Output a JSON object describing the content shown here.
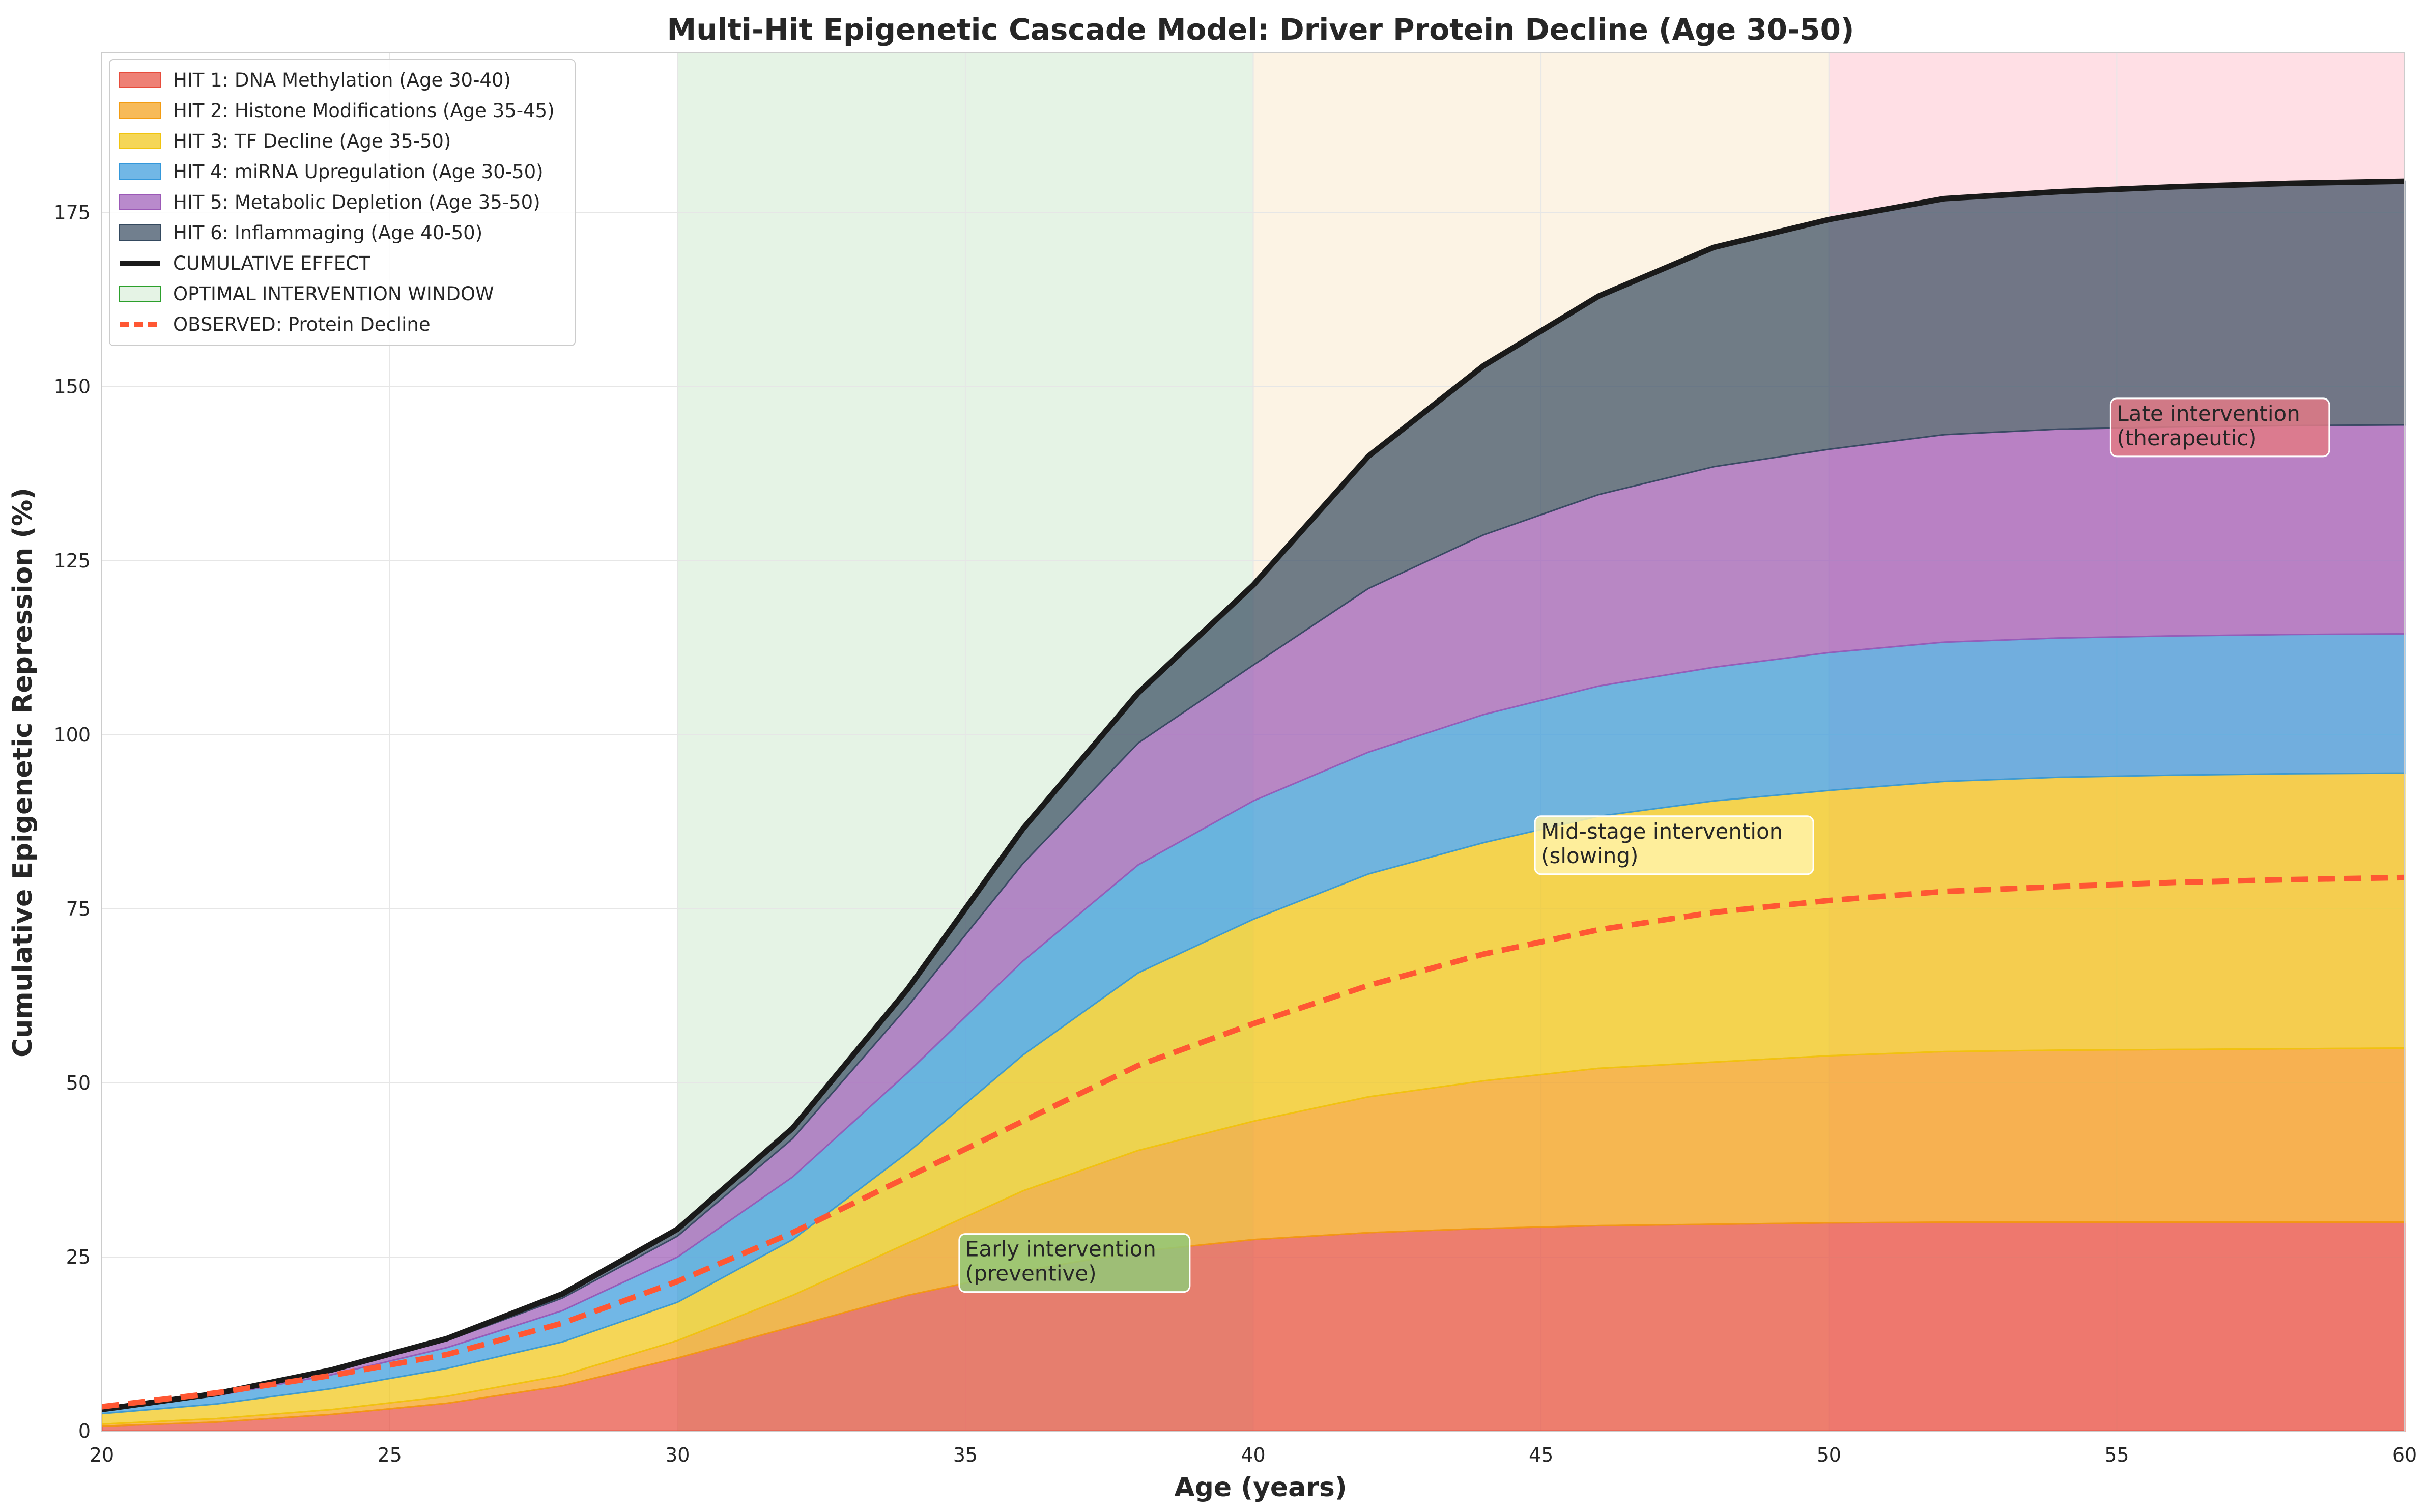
{
  "chart_data": {
    "type": "area",
    "title": "Multi-Hit Epigenetic Cascade Model: Driver Protein Decline (Age 30-50)",
    "xlabel": "Age (years)",
    "ylabel": "Cumulative Epigenetic Repression (%)",
    "xlim": [
      20,
      60
    ],
    "ylim": [
      0,
      198
    ],
    "xticks": [
      "20",
      "25",
      "30",
      "35",
      "40",
      "45",
      "50",
      "55",
      "60"
    ],
    "yticks": [
      "0",
      "25",
      "50",
      "75",
      "100",
      "125",
      "150",
      "175"
    ],
    "grid": true,
    "legend_position": "top-left",
    "x": [
      20,
      22,
      24,
      26,
      28,
      30,
      32,
      34,
      36,
      38,
      40,
      42,
      44,
      46,
      48,
      50,
      52,
      54,
      56,
      58,
      60
    ],
    "series": [
      {
        "name": "HIT 1: DNA Methylation (Age 30-40)",
        "color": "#e74c3c",
        "values": [
          0.7,
          1.3,
          2.4,
          4.0,
          6.5,
          10.5,
          15.0,
          19.5,
          23.0,
          25.8,
          27.5,
          28.5,
          29.1,
          29.5,
          29.7,
          29.9,
          30.0,
          30.0,
          30.0,
          30.0,
          30.0
        ]
      },
      {
        "name": "HIT 2: Histone Modifications (Age 35-45)",
        "color": "#f39c12",
        "values": [
          0.3,
          0.5,
          0.7,
          1.0,
          1.5,
          2.5,
          4.5,
          7.5,
          11.5,
          14.5,
          17.0,
          19.5,
          21.2,
          22.6,
          23.3,
          24.0,
          24.5,
          24.7,
          24.8,
          24.9,
          25.0
        ]
      },
      {
        "name": "HIT 3: TF Decline (Age 35-50)",
        "color": "#f1c40f",
        "values": [
          1.5,
          2.1,
          3.0,
          4.0,
          4.8,
          5.5,
          8.0,
          13.0,
          19.5,
          25.5,
          29.0,
          32.0,
          34.2,
          36.2,
          37.5,
          38.1,
          38.8,
          39.2,
          39.4,
          39.5,
          39.5
        ]
      },
      {
        "name": "HIT 4: miRNA Upregulation (Age 30-50)",
        "color": "#3498db",
        "values": [
          0.5,
          1.2,
          2.0,
          3.0,
          4.5,
          6.5,
          9.0,
          11.5,
          13.5,
          15.5,
          17.0,
          17.5,
          18.4,
          18.7,
          19.2,
          19.8,
          20.0,
          20.0,
          20.0,
          20.0,
          20.0
        ]
      },
      {
        "name": "HIT 5: Metabolic Depletion (Age 35-50)",
        "color": "#9b59b6",
        "values": [
          0.1,
          0.3,
          0.6,
          1.0,
          1.8,
          3.0,
          5.5,
          9.5,
          14.0,
          17.5,
          19.5,
          23.5,
          25.8,
          27.5,
          28.8,
          29.2,
          29.8,
          30.0,
          30.0,
          30.0,
          30.0
        ]
      },
      {
        "name": "HIT 6: Inflammaging (Age 40-50)",
        "color": "#34495e",
        "values": [
          0.0,
          0.0,
          0.1,
          0.3,
          0.6,
          1.0,
          1.5,
          2.5,
          5.0,
          7.2,
          11.5,
          19.0,
          24.3,
          28.5,
          31.5,
          33.0,
          33.9,
          34.1,
          34.5,
          34.8,
          35.0
        ]
      }
    ],
    "cumulative_effect": {
      "name": "CUMULATIVE EFFECT",
      "color": "#1a1a1a",
      "values": [
        3.1,
        5.4,
        8.8,
        13.3,
        19.7,
        29.0,
        43.5,
        63.5,
        86.5,
        106.0,
        121.5,
        140.0,
        153.0,
        163.0,
        170.0,
        174.0,
        177.0,
        178.0,
        178.7,
        179.2,
        179.5
      ]
    },
    "observed": {
      "name": "OBSERVED: Protein Decline",
      "color": "#ff5733",
      "x": [
        20,
        22,
        24,
        26,
        28,
        30,
        32,
        34,
        36,
        38,
        40,
        42,
        44,
        46,
        48,
        50,
        52,
        54,
        56,
        58,
        60
      ],
      "values": [
        3.5,
        5.5,
        8.0,
        11.0,
        15.5,
        21.5,
        28.5,
        36.5,
        44.5,
        52.5,
        58.5,
        64.0,
        68.5,
        72.0,
        74.5,
        76.2,
        77.5,
        78.2,
        78.8,
        79.2,
        79.5
      ]
    },
    "windows": [
      {
        "name": "OPTIMAL INTERVENTION WINDOW",
        "range": [
          30,
          40
        ],
        "color": "#2ca02c",
        "in_legend": true
      },
      {
        "range": [
          40,
          50
        ],
        "color": "#f5deb3",
        "in_legend": false
      },
      {
        "range": [
          50,
          60
        ],
        "color": "#ffc0cb",
        "in_legend": false
      }
    ],
    "annotations": [
      {
        "lines": [
          "Early intervention",
          "(preventive)"
        ],
        "x": 35,
        "y": 21,
        "color": "#90c978"
      },
      {
        "lines": [
          "Mid-stage intervention",
          "(slowing)"
        ],
        "x": 45,
        "y": 81,
        "color": "#fff2a8"
      },
      {
        "lines": [
          "Late intervention",
          "(therapeutic)"
        ],
        "x": 55,
        "y": 141,
        "color": "#e07a86"
      }
    ]
  }
}
